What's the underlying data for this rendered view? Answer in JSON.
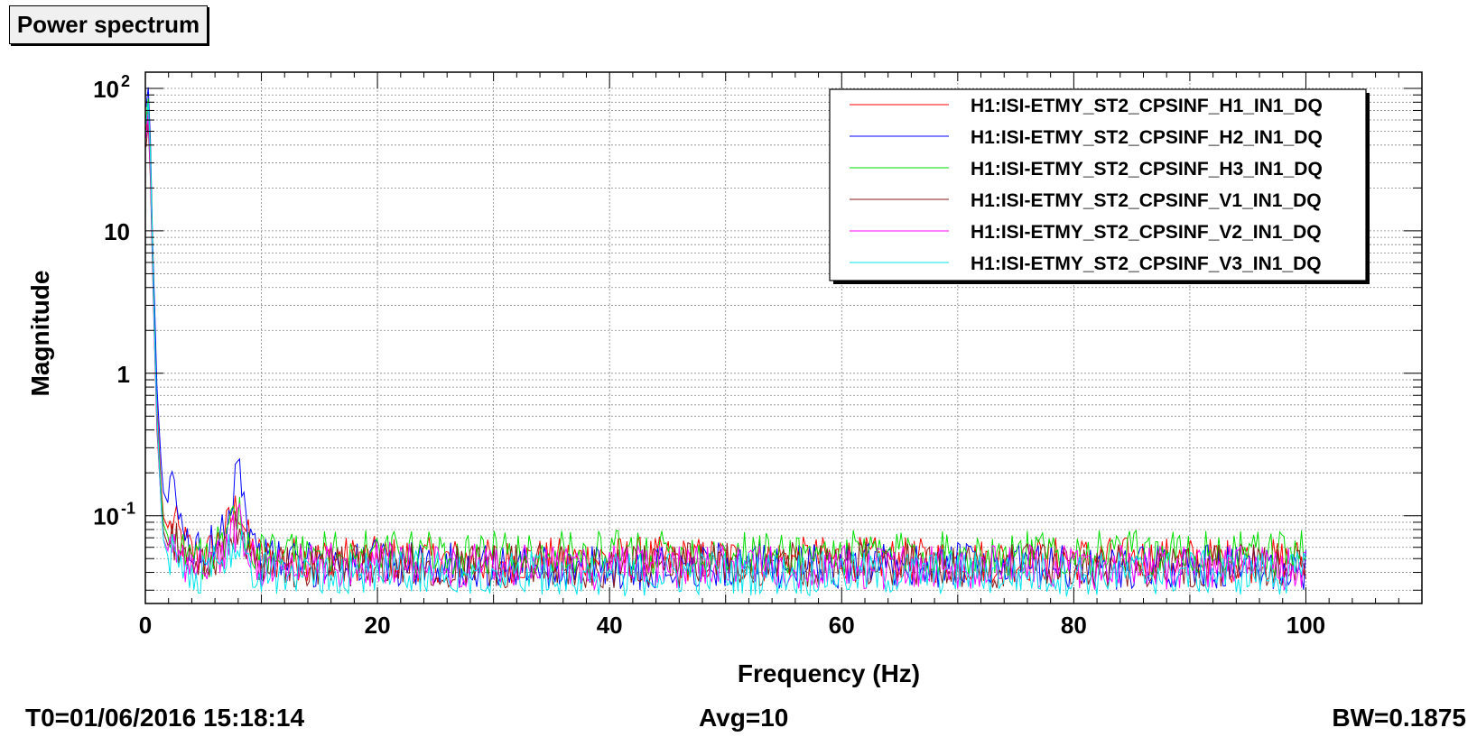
{
  "title": "Power spectrum",
  "footer": {
    "t0": "T0=01/06/2016 15:18:14",
    "avg": "Avg=10",
    "bw": "BW=0.1875"
  },
  "colors": {
    "H1": "#ff0000",
    "H2": "#0000ff",
    "H3": "#00dd00",
    "V1": "#8b1a1a",
    "V2": "#ff00ff",
    "V3": "#00e5ee"
  },
  "chart_data": {
    "type": "line",
    "title": "Power spectrum",
    "xlabel": "Frequency (Hz)",
    "ylabel": "Magnitude",
    "xlim": [
      0,
      110
    ],
    "ylim": [
      0.0242,
      130
    ],
    "yscale": "log",
    "grid": true,
    "legend_position": "top-right",
    "x_ticks": [
      0,
      20,
      40,
      60,
      80,
      100
    ],
    "x_tick_labels": [
      "0",
      "20",
      "40",
      "60",
      "80",
      "100"
    ],
    "y_tick_labels": [
      {
        "value": 100,
        "base": "10",
        "exp": "2"
      },
      {
        "value": 10,
        "base": "10",
        "exp": ""
      },
      {
        "value": 1,
        "base": "1",
        "exp": ""
      },
      {
        "value": 0.1,
        "base": "10",
        "exp": "-1"
      }
    ],
    "series": [
      {
        "name": "H1:ISI-ETMY_ST2_CPSINF_H1_IN1_DQ",
        "key": "H1",
        "x": [
          0,
          0.2,
          0.4,
          0.6,
          0.8,
          1,
          1.5,
          2,
          2.5,
          3,
          4,
          5,
          6,
          7,
          7.5,
          8,
          8.5,
          9,
          10,
          15,
          20,
          30,
          40,
          50,
          60,
          70,
          80,
          90,
          100
        ],
        "y": [
          40,
          90,
          30,
          8,
          2,
          0.6,
          0.1,
          0.08,
          0.09,
          0.07,
          0.055,
          0.05,
          0.06,
          0.08,
          0.1,
          0.12,
          0.09,
          0.06,
          0.05,
          0.05,
          0.05,
          0.048,
          0.05,
          0.049,
          0.05,
          0.048,
          0.05,
          0.049,
          0.048
        ]
      },
      {
        "name": "H1:ISI-ETMY_ST2_CPSINF_H2_IN1_DQ",
        "key": "H2",
        "x": [
          0,
          0.2,
          0.4,
          0.6,
          0.8,
          1,
          1.5,
          2,
          2.5,
          3,
          4,
          5,
          6,
          7,
          7.5,
          8,
          8.5,
          9,
          10,
          15,
          20,
          30,
          40,
          50,
          60,
          70,
          80,
          90,
          100
        ],
        "y": [
          60,
          120,
          60,
          10,
          3,
          0.8,
          0.15,
          0.12,
          0.19,
          0.08,
          0.06,
          0.05,
          0.07,
          0.1,
          0.13,
          0.33,
          0.12,
          0.07,
          0.05,
          0.045,
          0.047,
          0.044,
          0.043,
          0.045,
          0.044,
          0.045,
          0.043,
          0.044,
          0.043
        ]
      },
      {
        "name": "H1:ISI-ETMY_ST2_CPSINF_H3_IN1_DQ",
        "key": "H3",
        "x": [
          0,
          0.2,
          0.4,
          0.6,
          0.8,
          1,
          1.5,
          2,
          2.5,
          3,
          4,
          5,
          6,
          7,
          7.5,
          8,
          8.5,
          9,
          10,
          15,
          20,
          30,
          40,
          50,
          60,
          70,
          80,
          90,
          100
        ],
        "y": [
          50,
          100,
          50,
          9,
          2,
          0.5,
          0.09,
          0.07,
          0.08,
          0.06,
          0.055,
          0.05,
          0.055,
          0.07,
          0.08,
          0.1,
          0.08,
          0.06,
          0.055,
          0.056,
          0.055,
          0.054,
          0.055,
          0.054,
          0.055,
          0.054,
          0.055,
          0.054,
          0.055
        ]
      },
      {
        "name": "H1:ISI-ETMY_ST2_CPSINF_V1_IN1_DQ",
        "key": "V1",
        "x": [
          0,
          0.2,
          0.4,
          0.6,
          0.8,
          1,
          1.5,
          2,
          2.5,
          3,
          4,
          5,
          6,
          7,
          7.5,
          8,
          8.5,
          9,
          10,
          15,
          20,
          30,
          40,
          50,
          60,
          70,
          80,
          90,
          100
        ],
        "y": [
          30,
          70,
          30,
          6,
          1.5,
          0.4,
          0.08,
          0.06,
          0.07,
          0.055,
          0.05,
          0.045,
          0.05,
          0.06,
          0.07,
          0.08,
          0.07,
          0.05,
          0.045,
          0.045,
          0.046,
          0.045,
          0.044,
          0.045,
          0.046,
          0.045,
          0.044,
          0.045,
          0.044
        ]
      },
      {
        "name": "H1:ISI-ETMY_ST2_CPSINF_V2_IN1_DQ",
        "key": "V2",
        "x": [
          0,
          0.2,
          0.4,
          0.6,
          0.8,
          1,
          1.5,
          2,
          2.5,
          3,
          4,
          5,
          6,
          7,
          7.5,
          8,
          8.5,
          9,
          10,
          15,
          20,
          30,
          40,
          50,
          60,
          70,
          80,
          90,
          100
        ],
        "y": [
          35,
          80,
          35,
          7,
          1.6,
          0.45,
          0.07,
          0.055,
          0.06,
          0.05,
          0.045,
          0.045,
          0.05,
          0.06,
          0.07,
          0.09,
          0.07,
          0.05,
          0.045,
          0.045,
          0.046,
          0.044,
          0.043,
          0.044,
          0.043,
          0.044,
          0.043,
          0.044,
          0.043
        ]
      },
      {
        "name": "H1:ISI-ETMY_ST2_CPSINF_V3_IN1_DQ",
        "key": "V3",
        "x": [
          0,
          0.2,
          0.4,
          0.6,
          0.8,
          1,
          1.5,
          2,
          2.5,
          3,
          4,
          5,
          6,
          7,
          7.5,
          8,
          8.5,
          9,
          10,
          15,
          20,
          30,
          40,
          50,
          60,
          70,
          80,
          90,
          100
        ],
        "y": [
          45,
          95,
          45,
          8,
          1.8,
          0.5,
          0.07,
          0.05,
          0.055,
          0.045,
          0.04,
          0.04,
          0.045,
          0.05,
          0.06,
          0.07,
          0.06,
          0.045,
          0.04,
          0.04,
          0.041,
          0.04,
          0.039,
          0.04,
          0.039,
          0.04,
          0.039,
          0.04,
          0.039
        ]
      }
    ]
  }
}
